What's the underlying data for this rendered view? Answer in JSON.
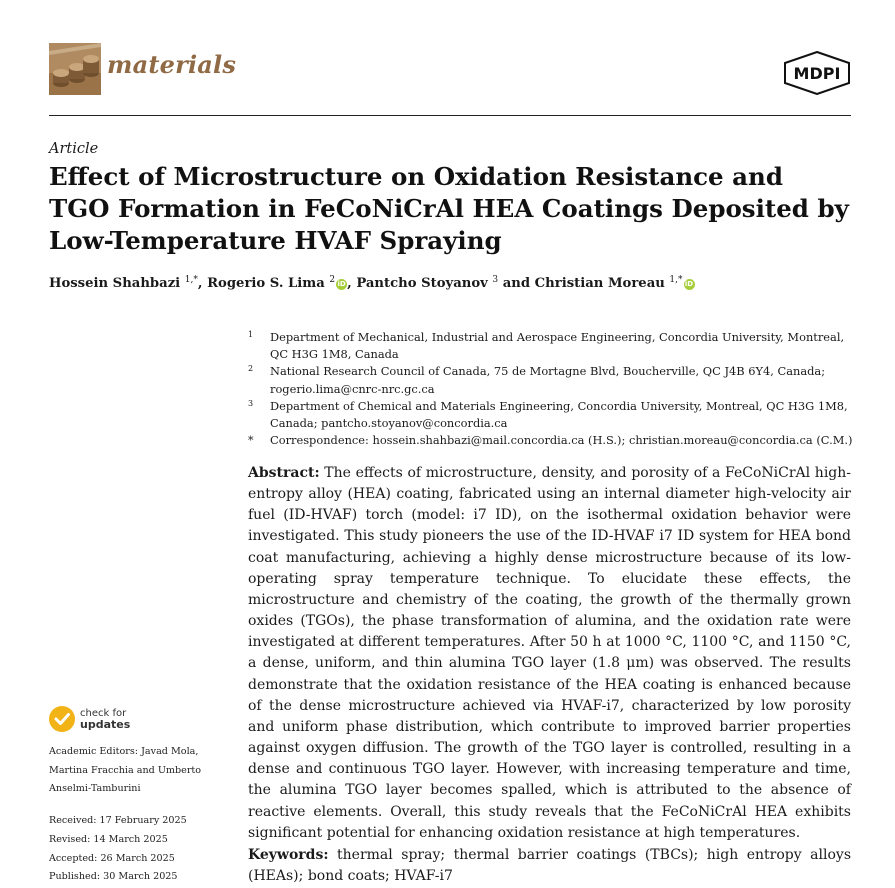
{
  "journal": {
    "name": "materials",
    "publisher": "MDPI"
  },
  "article_type": "Article",
  "title": "Effect of Microstructure on Oxidation Resistance and TGO Formation in FeCoNiCrAl HEA Coatings Deposited by Low-Temperature HVAF Spraying",
  "authors": [
    {
      "name": "Hossein Shahbazi",
      "sup": "1,*",
      "orcid": false,
      "sep": ", "
    },
    {
      "name": "Rogerio S. Lima",
      "sup": "2",
      "orcid": true,
      "sep": ", "
    },
    {
      "name": "Pantcho Stoyanov",
      "sup": "3",
      "orcid": false,
      "sep": " and "
    },
    {
      "name": "Christian Moreau",
      "sup": "1,*",
      "orcid": true,
      "sep": ""
    }
  ],
  "affiliations": [
    {
      "mark": "1",
      "text": "Department of Mechanical, Industrial and Aerospace Engineering, Concordia University, Montreal, QC H3G 1M8, Canada"
    },
    {
      "mark": "2",
      "text": "National Research Council of Canada, 75 de Mortagne Blvd, Boucherville, QC J4B 6Y4, Canada; rogerio.lima@cnrc-nrc.gc.ca"
    },
    {
      "mark": "3",
      "text": "Department of Chemical and Materials Engineering, Concordia University, Montreal, QC H3G 1M8, Canada; pantcho.stoyanov@concordia.ca"
    },
    {
      "mark": "*",
      "text": "Correspondence: hossein.shahbazi@mail.concordia.ca (H.S.); christian.moreau@concordia.ca (C.M.)"
    }
  ],
  "abstract": {
    "label": "Abstract:",
    "text": "The effects of microstructure, density, and porosity of a FeCoNiCrAl high-entropy alloy (HEA) coating, fabricated using an internal diameter high-velocity air fuel (ID-HVAF) torch (model: i7 ID), on the isothermal oxidation behavior were investigated. This study pioneers the use of the ID-HVAF i7 ID system for HEA bond coat manufacturing, achieving a highly dense microstructure because of its low-operating spray temperature technique. To elucidate these effects, the microstructure and chemistry of the coating, the growth of the thermally grown oxides (TGOs), the phase transformation of alumina, and the oxidation rate were investigated at different temperatures. After 50 h at 1000 °C, 1100 °C, and 1150 °C, a dense, uniform, and thin alumina TGO layer (1.8 μm) was observed. The results demonstrate that the oxidation resistance of the HEA coating is enhanced because of the dense microstructure achieved via HVAF-i7, characterized by low porosity and uniform phase distribution, which contribute to improved barrier properties against oxygen diffusion. The growth of the TGO layer is controlled, resulting in a dense and continuous TGO layer. However, with increasing temperature and time, the alumina TGO layer becomes spalled, which is attributed to the absence of reactive elements. Overall, this study reveals that the FeCoNiCrAl HEA exhibits significant potential for enhancing oxidation resistance at high temperatures."
  },
  "keywords": {
    "label": "Keywords:",
    "text": "thermal spray; thermal barrier coatings (TBCs); high entropy alloys (HEAs); bond coats; HVAF-i7"
  },
  "check_updates": {
    "line1": "check for",
    "line2": "updates"
  },
  "left_meta": {
    "editors_label": "Academic Editors:",
    "editors": "Javad Mola, Martina Fracchia and Umberto Anselmi-Tamburini",
    "received": "Received: 17 February 2025",
    "revised": "Revised: 14 March 2025",
    "accepted": "Accepted: 26 March 2025",
    "published": "Published: 30 March 2025"
  },
  "colors": {
    "journal": "#8f6a45",
    "orcid": "#a6ce39",
    "check_badge": "#f2b316"
  }
}
